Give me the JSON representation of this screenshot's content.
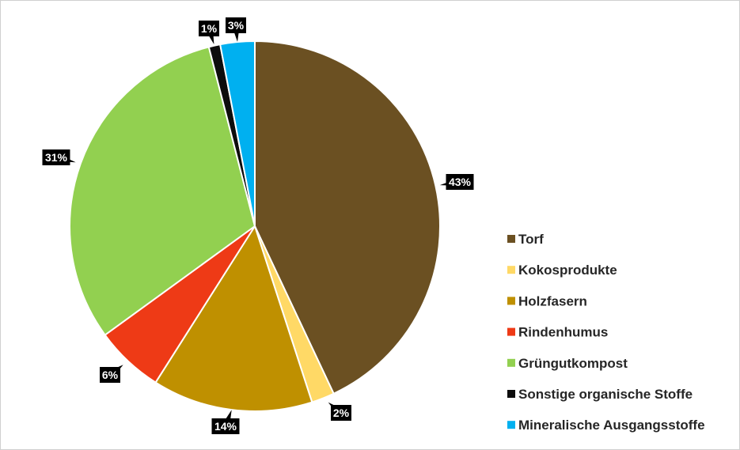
{
  "chart_data": {
    "type": "pie",
    "title": "",
    "legend_position": "right",
    "slices": [
      {
        "label": "Torf",
        "value": 43,
        "value_label": "43%",
        "color": "#6b5022"
      },
      {
        "label": "Kokosprodukte",
        "value": 2,
        "value_label": "2%",
        "color": "#ffd966"
      },
      {
        "label": "Holzfasern",
        "value": 14,
        "value_label": "14%",
        "color": "#bf9000"
      },
      {
        "label": "Rindenhumus",
        "value": 6,
        "value_label": "6%",
        "color": "#ee3a16"
      },
      {
        "label": "Grüngutkompost",
        "value": 31,
        "value_label": "31%",
        "color": "#92d050"
      },
      {
        "label": "Sonstige organische Stoffe",
        "value": 1,
        "value_label": "1%",
        "color": "#0d0d0d"
      },
      {
        "label": "Mineralische Ausgangsstoffe",
        "value": 3,
        "value_label": "3%",
        "color": "#00b0f0"
      }
    ]
  }
}
